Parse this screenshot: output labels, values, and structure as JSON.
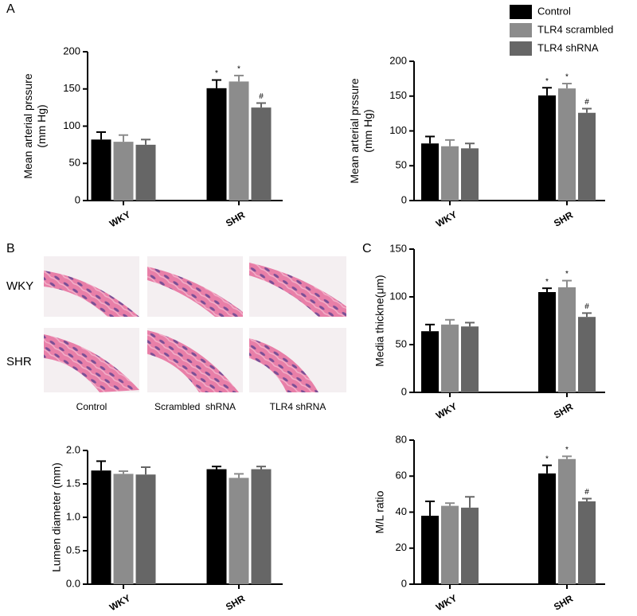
{
  "panels": [
    "A",
    "B",
    "C"
  ],
  "histology": {
    "rows": [
      "WKY",
      "SHR"
    ],
    "columns": [
      "Control",
      "Scrambled  shRNA",
      "TLR4 shRNA"
    ]
  },
  "chart_data": [
    {
      "type": "bar",
      "ylabel": [
        "Mean arterial prssure",
        "(mm Hg)"
      ],
      "categories": [
        "WKY",
        "SHR"
      ],
      "ylim": [
        0,
        200
      ],
      "yticks": [
        0,
        50,
        100,
        150,
        200
      ],
      "series": [
        {
          "color": "#000000",
          "values": [
            82,
            151
          ],
          "errors": [
            10,
            11
          ],
          "markers": [
            null,
            "*"
          ]
        },
        {
          "color": "#8c8c8c",
          "values": [
            79,
            160
          ],
          "errors": [
            9,
            8
          ],
          "markers": [
            null,
            "*"
          ]
        },
        {
          "color": "#666666",
          "values": [
            75,
            125
          ],
          "errors": [
            7,
            6
          ],
          "markers": [
            null,
            "#"
          ]
        }
      ]
    },
    {
      "type": "bar",
      "ylabel": [
        "Mean arterial prssure",
        "(mm Hg)"
      ],
      "categories": [
        "WKY",
        "SHR"
      ],
      "ylim": [
        0,
        200
      ],
      "yticks": [
        0,
        50,
        100,
        150,
        200
      ],
      "legend": "top-right",
      "series": [
        {
          "name": "Control",
          "color": "#000000",
          "values": [
            82,
            151
          ],
          "errors": [
            10,
            11
          ],
          "markers": [
            null,
            "*"
          ]
        },
        {
          "name": "TLR4 scrambled",
          "color": "#8c8c8c",
          "values": [
            78,
            161
          ],
          "errors": [
            9,
            7
          ],
          "markers": [
            null,
            "*"
          ]
        },
        {
          "name": "TLR4 shRNA",
          "color": "#666666",
          "values": [
            75,
            126
          ],
          "errors": [
            7,
            6
          ],
          "markers": [
            null,
            "#"
          ]
        }
      ]
    },
    {
      "type": "bar",
      "ylabel": [
        "Media thickne(μm)"
      ],
      "categories": [
        "WKY",
        "SHR"
      ],
      "ylim": [
        0,
        150
      ],
      "yticks": [
        0,
        50,
        100,
        150
      ],
      "series": [
        {
          "color": "#000000",
          "values": [
            64,
            105
          ],
          "errors": [
            7,
            4
          ],
          "markers": [
            null,
            "*"
          ]
        },
        {
          "color": "#8c8c8c",
          "values": [
            71,
            110
          ],
          "errors": [
            5,
            7
          ],
          "markers": [
            null,
            "*"
          ]
        },
        {
          "color": "#666666",
          "values": [
            69,
            79
          ],
          "errors": [
            4,
            4
          ],
          "markers": [
            null,
            "#"
          ]
        }
      ]
    },
    {
      "type": "bar",
      "ylabel": [
        "Lumen diameter (mm)"
      ],
      "categories": [
        "WKY",
        "SHR"
      ],
      "ylim": [
        0,
        2
      ],
      "yticks": [
        {
          "value": 0,
          "label": "0.0"
        },
        {
          "value": 0.5,
          "label": "0.5"
        },
        {
          "value": 1,
          "label": "1.0"
        },
        {
          "value": 1.5,
          "label": "1.5"
        },
        {
          "value": 2,
          "label": "2.0"
        }
      ],
      "series": [
        {
          "color": "#000000",
          "values": [
            1.7,
            1.72
          ],
          "errors": [
            0.14,
            0.04
          ]
        },
        {
          "color": "#8c8c8c",
          "values": [
            1.65,
            1.59
          ],
          "errors": [
            0.04,
            0.06
          ]
        },
        {
          "color": "#666666",
          "values": [
            1.64,
            1.72
          ],
          "errors": [
            0.11,
            0.04
          ]
        }
      ]
    },
    {
      "type": "bar",
      "ylabel": [
        "M/L ratio"
      ],
      "categories": [
        "WKY",
        "SHR"
      ],
      "ylim": [
        0,
        80
      ],
      "yticks": [
        0,
        20,
        40,
        60,
        80
      ],
      "series": [
        {
          "color": "#000000",
          "values": [
            38,
            61.5
          ],
          "errors": [
            8,
            4.5
          ],
          "markers": [
            null,
            "*"
          ]
        },
        {
          "color": "#8c8c8c",
          "values": [
            43.5,
            69.5
          ],
          "errors": [
            1.5,
            1.5
          ],
          "markers": [
            null,
            "*"
          ]
        },
        {
          "color": "#666666",
          "values": [
            42.5,
            46
          ],
          "errors": [
            6,
            1.5
          ],
          "markers": [
            null,
            "#"
          ]
        }
      ]
    }
  ]
}
